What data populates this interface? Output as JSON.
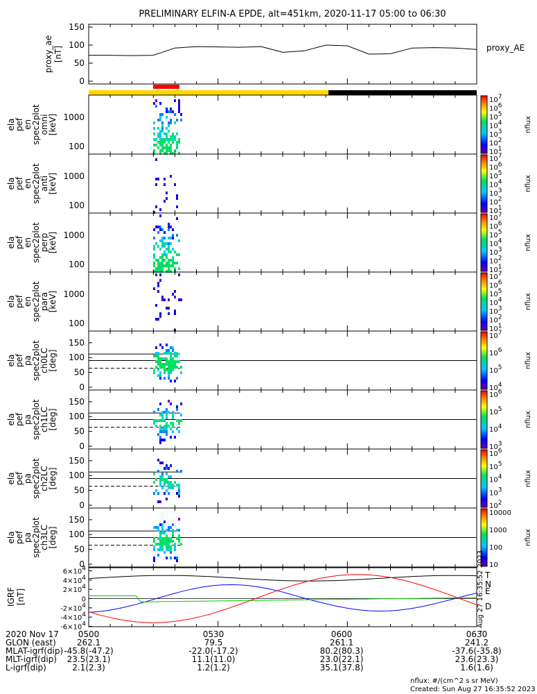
{
  "title": "PRELIMINARY ELFIN-A EPDE, alt=451km, 2020-11-17 05:00 to 06:30",
  "time_labels": [
    "0500",
    "0530",
    "0600",
    "0630"
  ],
  "proxy_panel": {
    "ylabel": [
      "proxy_ae",
      "[nT]"
    ],
    "yticks": [
      "150",
      "100",
      "50",
      "0"
    ],
    "legend": "proxy_AE"
  },
  "spec_panels": [
    {
      "ylabel": [
        "ela",
        "pef",
        "en",
        "spec2plot",
        "omni",
        "[keV]"
      ],
      "yticks": [
        "1000",
        "100"
      ],
      "cticks": [
        "10^7",
        "10^6",
        "10^5",
        "10^4",
        "10^3",
        "10^2",
        "10^1"
      ],
      "cunit": "nflux"
    },
    {
      "ylabel": [
        "ela",
        "pef",
        "en",
        "spec2plot",
        "anti",
        "[keV]"
      ],
      "yticks": [
        "1000",
        "100"
      ],
      "cticks": [
        "10^7",
        "10^6",
        "10^5",
        "10^4",
        "10^3",
        "10^2",
        "10^1"
      ],
      "cunit": "nflux"
    },
    {
      "ylabel": [
        "ela",
        "pef",
        "en",
        "spec2plot",
        "perp",
        "[keV]"
      ],
      "yticks": [
        "1000",
        "100"
      ],
      "cticks": [
        "10^7",
        "10^6",
        "10^5",
        "10^4",
        "10^3",
        "10^2",
        "10^1"
      ],
      "cunit": "nflux"
    },
    {
      "ylabel": [
        "ela",
        "pef",
        "en",
        "spec2plot",
        "para",
        "[keV]"
      ],
      "yticks": [
        "1000",
        "100"
      ],
      "cticks": [
        "10^7",
        "10^6",
        "10^5",
        "10^4",
        "10^3",
        "10^2",
        "10^1"
      ],
      "cunit": "nflux"
    },
    {
      "ylabel": [
        "ela",
        "pef",
        "pa",
        "spec2plot",
        "ch0LC",
        "[deg]"
      ],
      "yticks": [
        "150",
        "100",
        "50",
        "0"
      ],
      "cticks": [
        "10^7",
        "10^6",
        "10^5",
        "10^4"
      ],
      "cunit": "nflux"
    },
    {
      "ylabel": [
        "ela",
        "pef",
        "pa",
        "spec2plot",
        "ch1LC",
        "[deg]"
      ],
      "yticks": [
        "150",
        "100",
        "50",
        "0"
      ],
      "cticks": [
        "10^6",
        "10^5",
        "10^4",
        "10^3"
      ],
      "cunit": "nflux"
    },
    {
      "ylabel": [
        "ela",
        "pef",
        "pa",
        "spec2plot",
        "ch2LC",
        "[deg]"
      ],
      "yticks": [
        "150",
        "100",
        "50",
        "0"
      ],
      "cticks": [
        "10^6",
        "10^5",
        "10^4",
        "10^3",
        "10^2"
      ],
      "cunit": "nflux"
    },
    {
      "ylabel": [
        "ela",
        "pef",
        "pa",
        "spec2plot",
        "ch3LC",
        "[deg]"
      ],
      "yticks": [
        "150",
        "100",
        "50",
        "0"
      ],
      "cticks": [
        "10000",
        "1000",
        "100",
        "10"
      ],
      "cunit": "nflux"
    }
  ],
  "igrf_panel": {
    "ylabel": [
      "IGRF",
      "[nT]"
    ],
    "yticks": [
      "6×10^4",
      "4×10^4",
      "2×10^4",
      "0",
      "-2×10^4",
      "-4×10^4",
      "-6×10^4"
    ],
    "legend": [
      {
        "label": "T",
        "color": "#000000"
      },
      {
        "label": "N",
        "color": "#0000ff"
      },
      {
        "label": "E",
        "color": "#00cc00"
      },
      {
        "label": "D",
        "color": "#ff0000"
      }
    ],
    "stamp": "Sun Aug 27 16:35:52 2023"
  },
  "chart_data": {
    "type": "line",
    "title": "PRELIMINARY ELFIN-A EPDE, alt=451km, 2020-11-17 05:00 to 06:30",
    "x_minutes": [
      0,
      5,
      10,
      15,
      20,
      25,
      30,
      35,
      40,
      45,
      50,
      55,
      60,
      65,
      70,
      75,
      80,
      85,
      90
    ],
    "series": [
      {
        "name": "proxy_AE",
        "values": [
          72,
          72,
          71,
          72,
          92,
          96,
          95,
          94,
          96,
          80,
          84,
          100,
          98,
          75,
          76,
          92,
          93,
          92,
          88
        ]
      }
    ],
    "ylabel": "proxy_ae [nT]",
    "ylim": [
      0,
      150
    ]
  },
  "footer": {
    "rows": [
      {
        "label": "2020 Nov 17",
        "values": [
          "0500",
          "0530",
          "0600",
          "0630"
        ]
      },
      {
        "label": "GLON (east)",
        "values": [
          "262.1",
          "79.5",
          "261.1",
          "241.2"
        ]
      },
      {
        "label": "MLAT-igrf(dip)",
        "values": [
          "-45.8(-47.2)",
          "-22.0(-17.2)",
          "80.2(80.3)",
          "-37.6(-35.8)"
        ]
      },
      {
        "label": "MLT-igrf(dip)",
        "values": [
          "23.5(23.1)",
          "11.1(11.0)",
          "23.0(22.1)",
          "23.6(23.3)"
        ]
      },
      {
        "label": "L-igrf(dip)",
        "values": [
          "2.1(2.3)",
          "1.2(1.2)",
          "35.1(37.8)",
          "1.6(1.6)"
        ]
      }
    ],
    "units_note": "nflux: #/(cm^2 s sr MeV)",
    "created": "Created: Sun Aug 27 16:35:52 2023"
  }
}
